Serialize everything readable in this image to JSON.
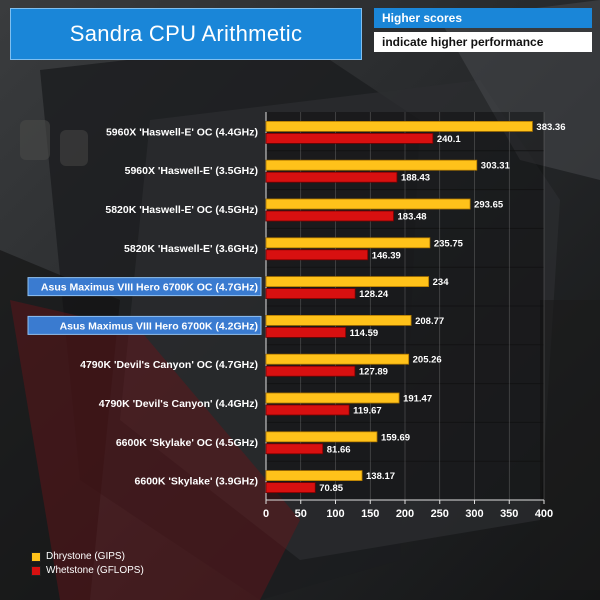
{
  "header": {
    "title": "Sandra CPU Arithmetic",
    "note_line1": "Higher scores",
    "note_line2": "indicate higher performance"
  },
  "colors": {
    "dhrystone": "#ffc21a",
    "whetstone": "#d81010",
    "highlight": "#3a7bd0"
  },
  "legend": {
    "dhrystone": "Dhrystone (GIPS)",
    "whetstone": "Whetstone (GFLOPS)"
  },
  "chart_data": {
    "type": "bar",
    "orientation": "horizontal",
    "categories": [
      "5960X 'Haswell-E' OC (4.4GHz)",
      "5960X 'Haswell-E' (3.5GHz)",
      "5820K 'Haswell-E' OC (4.5GHz)",
      "5820K 'Haswell-E' (3.6GHz)",
      "Asus Maximus VIII Hero 6700K OC (4.7GHz)",
      "Asus Maximus VIII Hero 6700K (4.2GHz)",
      "4790K 'Devil's Canyon' OC (4.7GHz)",
      "4790K 'Devil's Canyon' (4.4GHz)",
      "6600K 'Skylake' OC (4.5GHz)",
      "6600K 'Skylake' (3.9GHz)"
    ],
    "highlighted": [
      4,
      5
    ],
    "series": [
      {
        "name": "Dhrystone (GIPS)",
        "values": [
          383.36,
          303.31,
          293.65,
          235.75,
          234,
          208.77,
          205.26,
          191.47,
          159.69,
          138.17
        ],
        "labels": [
          "383.36",
          "303.31",
          "293.65",
          "235.75",
          "234",
          "208.77",
          "205.26",
          "191.47",
          "159.69",
          "138.17"
        ]
      },
      {
        "name": "Whetstone (GFLOPS)",
        "values": [
          240.1,
          188.43,
          183.48,
          146.39,
          128.24,
          114.59,
          127.89,
          119.67,
          81.66,
          70.85
        ],
        "labels": [
          "240.1",
          "188.43",
          "183.48",
          "146.39",
          "128.24",
          "114.59",
          "127.89",
          "119.67",
          "81.66",
          "70.85"
        ]
      }
    ],
    "xlim": [
      0,
      400
    ],
    "xticks": [
      "0",
      "50",
      "100",
      "150",
      "200",
      "250",
      "300",
      "350",
      "400"
    ],
    "grid": true
  }
}
